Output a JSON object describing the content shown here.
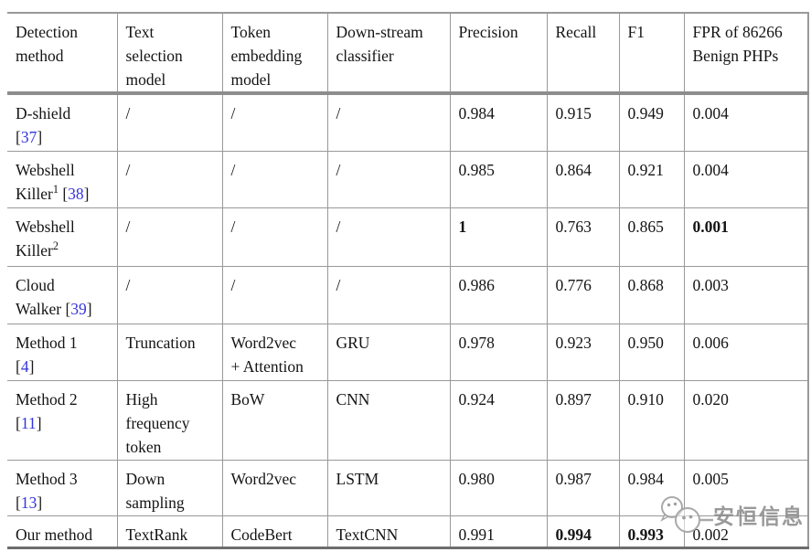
{
  "colors": {
    "cite_blue": "#3434dd",
    "grid_gray": "#999999",
    "text": "#141414",
    "watermark_gray": "#a5a5a5"
  },
  "watermark": {
    "text": "安恒信息",
    "icon": "chat-bubbles-logo"
  },
  "table": {
    "columns": [
      {
        "label": "Detection\nmethod"
      },
      {
        "label": "Text\nselection\nmodel"
      },
      {
        "label": "Token\nembedding\nmodel"
      },
      {
        "label": "Down-stream\nclassifier"
      },
      {
        "label": "Precision"
      },
      {
        "label": "Recall"
      },
      {
        "label": "F1"
      },
      {
        "label": "FPR of 86266\nBenign PHPs"
      }
    ],
    "rows": [
      {
        "method": [
          {
            "text": "D-shield\n"
          },
          {
            "bracket": "["
          },
          {
            "cite": "37"
          },
          {
            "bracket": "]"
          }
        ],
        "text_selection": "/",
        "token_embedding": "/",
        "classifier": "/",
        "precision": {
          "v": "0.984",
          "b": false
        },
        "recall": {
          "v": "0.915",
          "b": false
        },
        "f1": {
          "v": "0.949",
          "b": false
        },
        "fpr": {
          "v": "0.004",
          "b": false
        }
      },
      {
        "method": [
          {
            "text": "Webshell\nKiller"
          },
          {
            "sup": "1"
          },
          {
            "text": " "
          },
          {
            "bracket": "["
          },
          {
            "cite": "38"
          },
          {
            "bracket": "]"
          }
        ],
        "text_selection": "/",
        "token_embedding": "/",
        "classifier": "/",
        "precision": {
          "v": "0.985",
          "b": false
        },
        "recall": {
          "v": "0.864",
          "b": false
        },
        "f1": {
          "v": "0.921",
          "b": false
        },
        "fpr": {
          "v": "0.004",
          "b": false
        }
      },
      {
        "method": [
          {
            "text": "Webshell\nKiller"
          },
          {
            "sup": "2"
          }
        ],
        "text_selection": "/",
        "token_embedding": "/",
        "classifier": "/",
        "precision": {
          "v": "1",
          "b": true
        },
        "recall": {
          "v": "0.763",
          "b": false
        },
        "f1": {
          "v": "0.865",
          "b": false
        },
        "fpr": {
          "v": "0.001",
          "b": true
        }
      },
      {
        "method": [
          {
            "text": "Cloud\nWalker "
          },
          {
            "bracket": "["
          },
          {
            "cite": "39"
          },
          {
            "bracket": "]"
          }
        ],
        "text_selection": "/",
        "token_embedding": "/",
        "classifier": "/",
        "precision": {
          "v": "0.986",
          "b": false
        },
        "recall": {
          "v": "0.776",
          "b": false
        },
        "f1": {
          "v": "0.868",
          "b": false
        },
        "fpr": {
          "v": "0.003",
          "b": false
        }
      },
      {
        "method": [
          {
            "text": "Method 1\n"
          },
          {
            "bracket": "["
          },
          {
            "cite": "4"
          },
          {
            "bracket": "]"
          }
        ],
        "text_selection": "Truncation",
        "token_embedding": "Word2vec\n+ Attention",
        "classifier": "GRU",
        "precision": {
          "v": "0.978",
          "b": false
        },
        "recall": {
          "v": "0.923",
          "b": false
        },
        "f1": {
          "v": "0.950",
          "b": false
        },
        "fpr": {
          "v": "0.006",
          "b": false
        }
      },
      {
        "method": [
          {
            "text": "Method 2\n"
          },
          {
            "bracket": "["
          },
          {
            "cite": "11"
          },
          {
            "bracket": "]"
          }
        ],
        "text_selection": "High\nfrequency\ntoken",
        "token_embedding": "BoW",
        "classifier": "CNN",
        "precision": {
          "v": "0.924",
          "b": false
        },
        "recall": {
          "v": "0.897",
          "b": false
        },
        "f1": {
          "v": "0.910",
          "b": false
        },
        "fpr": {
          "v": "0.020",
          "b": false
        }
      },
      {
        "method": [
          {
            "text": "Method 3\n"
          },
          {
            "bracket": "["
          },
          {
            "cite": "13"
          },
          {
            "bracket": "]"
          }
        ],
        "text_selection": "Down\nsampling",
        "token_embedding": "Word2vec",
        "classifier": "LSTM",
        "precision": {
          "v": "0.980",
          "b": false
        },
        "recall": {
          "v": "0.987",
          "b": false
        },
        "f1": {
          "v": "0.984",
          "b": false
        },
        "fpr": {
          "v": "0.005",
          "b": false
        }
      },
      {
        "method": [
          {
            "text": "Our method"
          }
        ],
        "text_selection": "TextRank",
        "token_embedding": "CodeBert",
        "classifier": "TextCNN",
        "precision": {
          "v": "0.991",
          "b": false
        },
        "recall": {
          "v": "0.994",
          "b": true
        },
        "f1": {
          "v": "0.993",
          "b": true
        },
        "fpr": {
          "v": "0.002",
          "b": false
        }
      }
    ]
  }
}
